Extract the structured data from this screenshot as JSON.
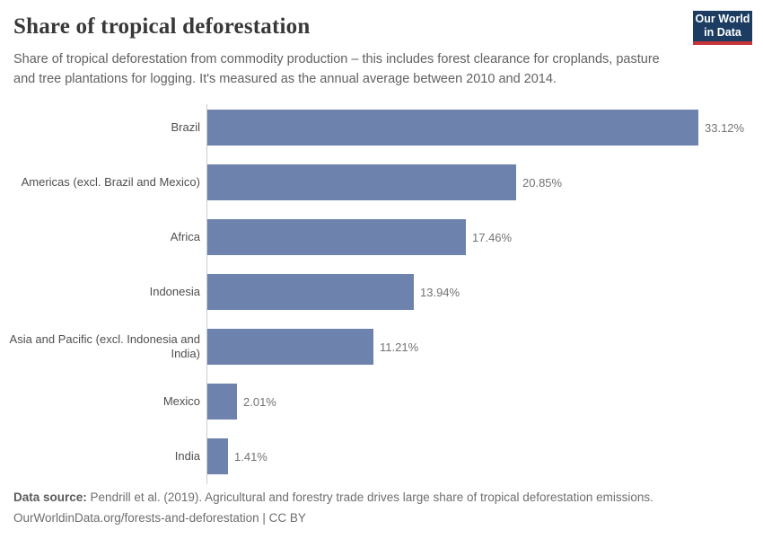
{
  "header": {
    "title": "Share of tropical deforestation",
    "subtitle": "Share of tropical deforestation from commodity production – this includes forest clearance for croplands, pasture and tree plantations for logging. It's measured as the annual average between 2010 and 2014.",
    "logo": {
      "line1": "Our World",
      "line2": "in Data"
    }
  },
  "chart_data": {
    "type": "bar",
    "orientation": "horizontal",
    "title": "Share of tropical deforestation",
    "categories": [
      "Brazil",
      "Americas (excl. Brazil and Mexico)",
      "Africa",
      "Indonesia",
      "Asia and Pacific (excl. Indonesia and India)",
      "Mexico",
      "India"
    ],
    "values": [
      33.12,
      20.85,
      17.46,
      13.94,
      11.21,
      2.01,
      1.41
    ],
    "value_labels": [
      "33.12%",
      "20.85%",
      "17.46%",
      "13.94%",
      "11.21%",
      "2.01%",
      "1.41%"
    ],
    "unit": "%",
    "xlabel": "",
    "ylabel": "",
    "xlim": [
      0,
      33.12
    ],
    "grid": false,
    "legend": false,
    "bar_color": "#6d83ae"
  },
  "footer": {
    "source_label": "Data source:",
    "source_text": "Pendrill et al. (2019). Agricultural and forestry trade drives large share of tropical deforestation emissions.",
    "link_text": "OurWorldinData.org/forests-and-deforestation | CC BY"
  },
  "colors": {
    "bar": "#6d83ae",
    "axis_line": "#cccccc",
    "title_text": "#383838",
    "subtitle_text": "#616161",
    "category_label_text": "#4f4f4f",
    "value_label_text": "#737373",
    "footer_text": "#6e6e6e",
    "logo_background": "#1c3c62",
    "logo_stripe": "#c5333b"
  }
}
